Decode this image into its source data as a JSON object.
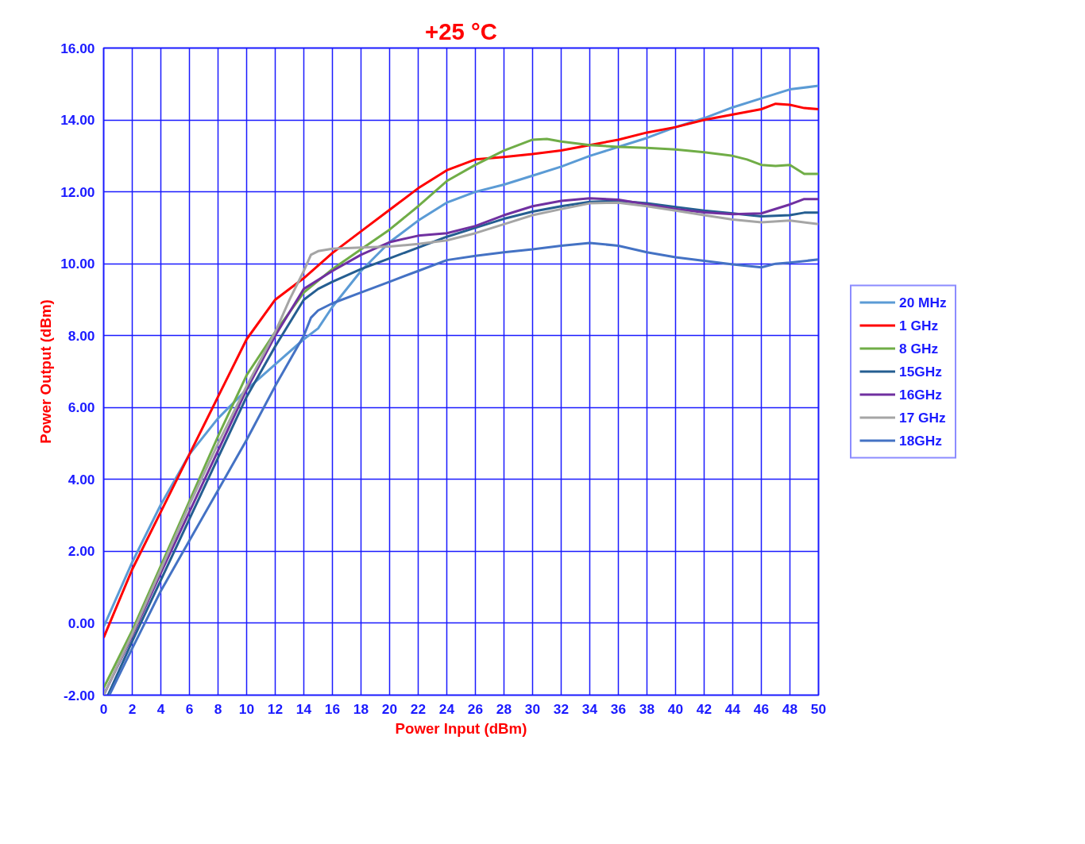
{
  "chart_data": {
    "type": "line",
    "title": "+25 °C",
    "xlabel": "Power Input (dBm)",
    "ylabel": "Power Output (dBm)",
    "xlim": [
      0,
      50
    ],
    "ylim": [
      -2,
      16
    ],
    "xticks": [
      0,
      2,
      4,
      6,
      8,
      10,
      12,
      14,
      16,
      18,
      20,
      22,
      24,
      26,
      28,
      30,
      32,
      34,
      36,
      38,
      40,
      42,
      44,
      46,
      48,
      50
    ],
    "yticks": [
      {
        "value": -2,
        "label": "-2.00"
      },
      {
        "value": 0,
        "label": "0.00"
      },
      {
        "value": 2,
        "label": "2.00"
      },
      {
        "value": 4,
        "label": "4.00"
      },
      {
        "value": 6,
        "label": "6.00"
      },
      {
        "value": 8,
        "label": "8.00"
      },
      {
        "value": 10,
        "label": "10.00"
      },
      {
        "value": 12,
        "label": "12.00"
      },
      {
        "value": 14,
        "label": "14.00"
      },
      {
        "value": 16,
        "label": "16.00"
      }
    ],
    "grid": true,
    "legend": "right",
    "marker": "none",
    "line_style": "solid",
    "series": [
      {
        "name": "20 MHz",
        "color": "#5b9bd5",
        "x": [
          0,
          2,
          4,
          6,
          8,
          10,
          12,
          14,
          15,
          16,
          18,
          20,
          22,
          24,
          26,
          28,
          30,
          32,
          34,
          36,
          38,
          40,
          42,
          44,
          46,
          48,
          50
        ],
        "values": [
          -0.1,
          1.7,
          3.3,
          4.7,
          5.7,
          6.5,
          7.2,
          7.9,
          8.2,
          8.8,
          9.8,
          10.6,
          11.2,
          11.7,
          12.0,
          12.2,
          12.45,
          12.7,
          13.0,
          13.25,
          13.5,
          13.8,
          14.05,
          14.35,
          14.6,
          14.85,
          14.95
        ]
      },
      {
        "name": "1 GHz",
        "color": "#ff0000",
        "x": [
          0,
          2,
          4,
          6,
          8,
          10,
          12,
          14,
          16,
          18,
          20,
          22,
          24,
          26,
          28,
          30,
          32,
          34,
          36,
          38,
          40,
          42,
          44,
          46,
          47,
          48,
          49,
          50
        ],
        "values": [
          -0.4,
          1.5,
          3.1,
          4.7,
          6.3,
          7.9,
          9.0,
          9.6,
          10.3,
          10.9,
          11.5,
          12.1,
          12.6,
          12.9,
          12.97,
          13.05,
          13.15,
          13.3,
          13.45,
          13.65,
          13.8,
          14.0,
          14.15,
          14.3,
          14.45,
          14.42,
          14.33,
          14.3
        ]
      },
      {
        "name": "8 GHz",
        "color": "#70ad47",
        "x": [
          0,
          2,
          4,
          6,
          8,
          10,
          12,
          14,
          16,
          18,
          20,
          22,
          24,
          26,
          28,
          30,
          31,
          32,
          34,
          36,
          38,
          40,
          42,
          44,
          45,
          46,
          47,
          48,
          49,
          50
        ],
        "values": [
          -1.8,
          -0.2,
          1.6,
          3.4,
          5.2,
          6.9,
          8.1,
          9.2,
          9.85,
          10.4,
          10.95,
          11.6,
          12.3,
          12.75,
          13.15,
          13.45,
          13.47,
          13.4,
          13.3,
          13.25,
          13.22,
          13.18,
          13.1,
          13.0,
          12.9,
          12.75,
          12.72,
          12.75,
          12.5,
          12.5
        ]
      },
      {
        "name": "15GHz",
        "color": "#255e91",
        "x": [
          0.3,
          2,
          4,
          6,
          8,
          10,
          12,
          14,
          15,
          16,
          18,
          20,
          22,
          24,
          26,
          28,
          30,
          32,
          34,
          36,
          38,
          40,
          42,
          44,
          46,
          48,
          49,
          50
        ],
        "values": [
          -2.0,
          -0.5,
          1.2,
          2.9,
          4.6,
          6.3,
          7.7,
          9.0,
          9.3,
          9.5,
          9.85,
          10.15,
          10.45,
          10.75,
          11.0,
          11.25,
          11.45,
          11.6,
          11.72,
          11.75,
          11.68,
          11.58,
          11.48,
          11.4,
          11.32,
          11.35,
          11.42,
          11.42
        ]
      },
      {
        "name": "16GHz",
        "color": "#7030a0",
        "x": [
          0,
          2,
          4,
          6,
          8,
          10,
          12,
          14,
          16,
          18,
          20,
          22,
          24,
          26,
          28,
          30,
          32,
          34,
          36,
          38,
          40,
          42,
          44,
          46,
          48,
          49,
          50
        ],
        "values": [
          -2.0,
          -0.35,
          1.4,
          3.1,
          4.8,
          6.5,
          8.0,
          9.3,
          9.8,
          10.25,
          10.6,
          10.78,
          10.85,
          11.05,
          11.35,
          11.6,
          11.75,
          11.82,
          11.78,
          11.65,
          11.52,
          11.43,
          11.38,
          11.4,
          11.65,
          11.8,
          11.8
        ]
      },
      {
        "name": "17 GHz",
        "color": "#a5a5a5",
        "x": [
          0,
          2,
          4,
          6,
          8,
          10,
          12,
          13,
          14,
          14.5,
          15,
          16,
          18,
          20,
          22,
          24,
          26,
          28,
          30,
          32,
          34,
          36,
          38,
          40,
          42,
          44,
          46,
          48,
          50
        ],
        "values": [
          -2.0,
          -0.3,
          1.5,
          3.3,
          5.0,
          6.6,
          8.1,
          9.0,
          9.8,
          10.25,
          10.35,
          10.42,
          10.45,
          10.48,
          10.55,
          10.65,
          10.85,
          11.1,
          11.35,
          11.52,
          11.68,
          11.7,
          11.6,
          11.48,
          11.35,
          11.23,
          11.15,
          11.2,
          11.1
        ]
      },
      {
        "name": "18GHz",
        "color": "#4472c4",
        "x": [
          0.4,
          2,
          4,
          6,
          8,
          10,
          12,
          14,
          14.5,
          15,
          16,
          18,
          20,
          22,
          24,
          26,
          28,
          30,
          32,
          34,
          36,
          38,
          40,
          42,
          44,
          46,
          47,
          48,
          50
        ],
        "values": [
          -2.0,
          -0.7,
          0.9,
          2.3,
          3.7,
          5.1,
          6.6,
          8.0,
          8.5,
          8.7,
          8.9,
          9.2,
          9.5,
          9.8,
          10.1,
          10.22,
          10.32,
          10.4,
          10.5,
          10.58,
          10.5,
          10.32,
          10.18,
          10.08,
          9.98,
          9.9,
          10.0,
          10.03,
          10.12
        ]
      }
    ]
  }
}
